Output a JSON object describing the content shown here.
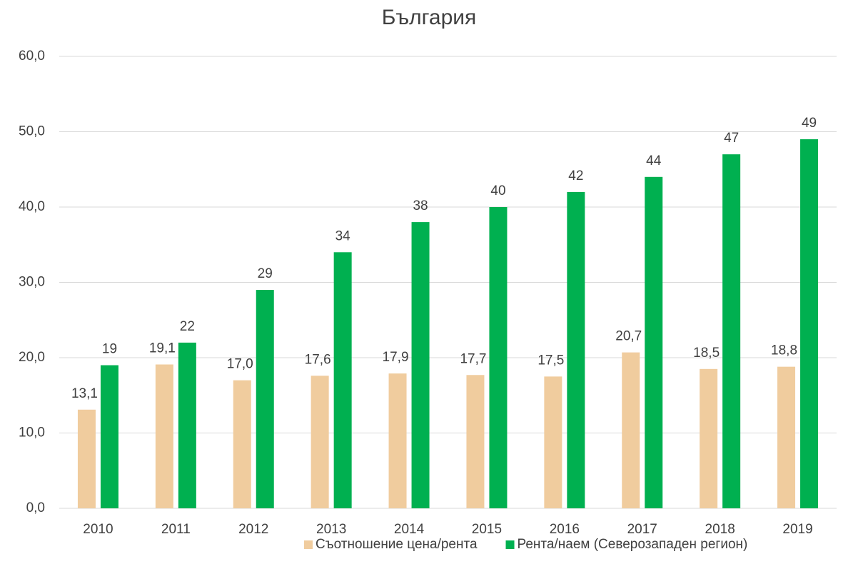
{
  "chart_data": {
    "type": "bar",
    "title": "България",
    "categories": [
      "2010",
      "2011",
      "2012",
      "2013",
      "2014",
      "2015",
      "2016",
      "2017",
      "2018",
      "2019"
    ],
    "series": [
      {
        "name": "Съотношение цена/рента",
        "color": "#f0cc9e",
        "values": [
          13.1,
          19.1,
          17.0,
          17.6,
          17.9,
          17.7,
          17.5,
          20.7,
          18.5,
          18.8
        ],
        "value_labels": [
          "13,1",
          "19,1",
          "17,0",
          "17,6",
          "17,9",
          "17,7",
          "17,5",
          "20,7",
          "18,5",
          "18,8"
        ]
      },
      {
        "name": "Рента/наем (Северозападен регион)",
        "color": "#00b050",
        "values": [
          19,
          22,
          29,
          34,
          38,
          40,
          42,
          44,
          47,
          49
        ]
      }
    ],
    "ylim": [
      0,
      60
    ],
    "yticks": [
      {
        "value": 0,
        "label": "0,0"
      },
      {
        "value": 10,
        "label": "10,0"
      },
      {
        "value": 20,
        "label": "20,0"
      },
      {
        "value": 30,
        "label": "30,0"
      },
      {
        "value": 40,
        "label": "40,0"
      },
      {
        "value": 50,
        "label": "50,0"
      },
      {
        "value": 60,
        "label": "60,0"
      }
    ],
    "grid": true,
    "legend": "bottom"
  }
}
